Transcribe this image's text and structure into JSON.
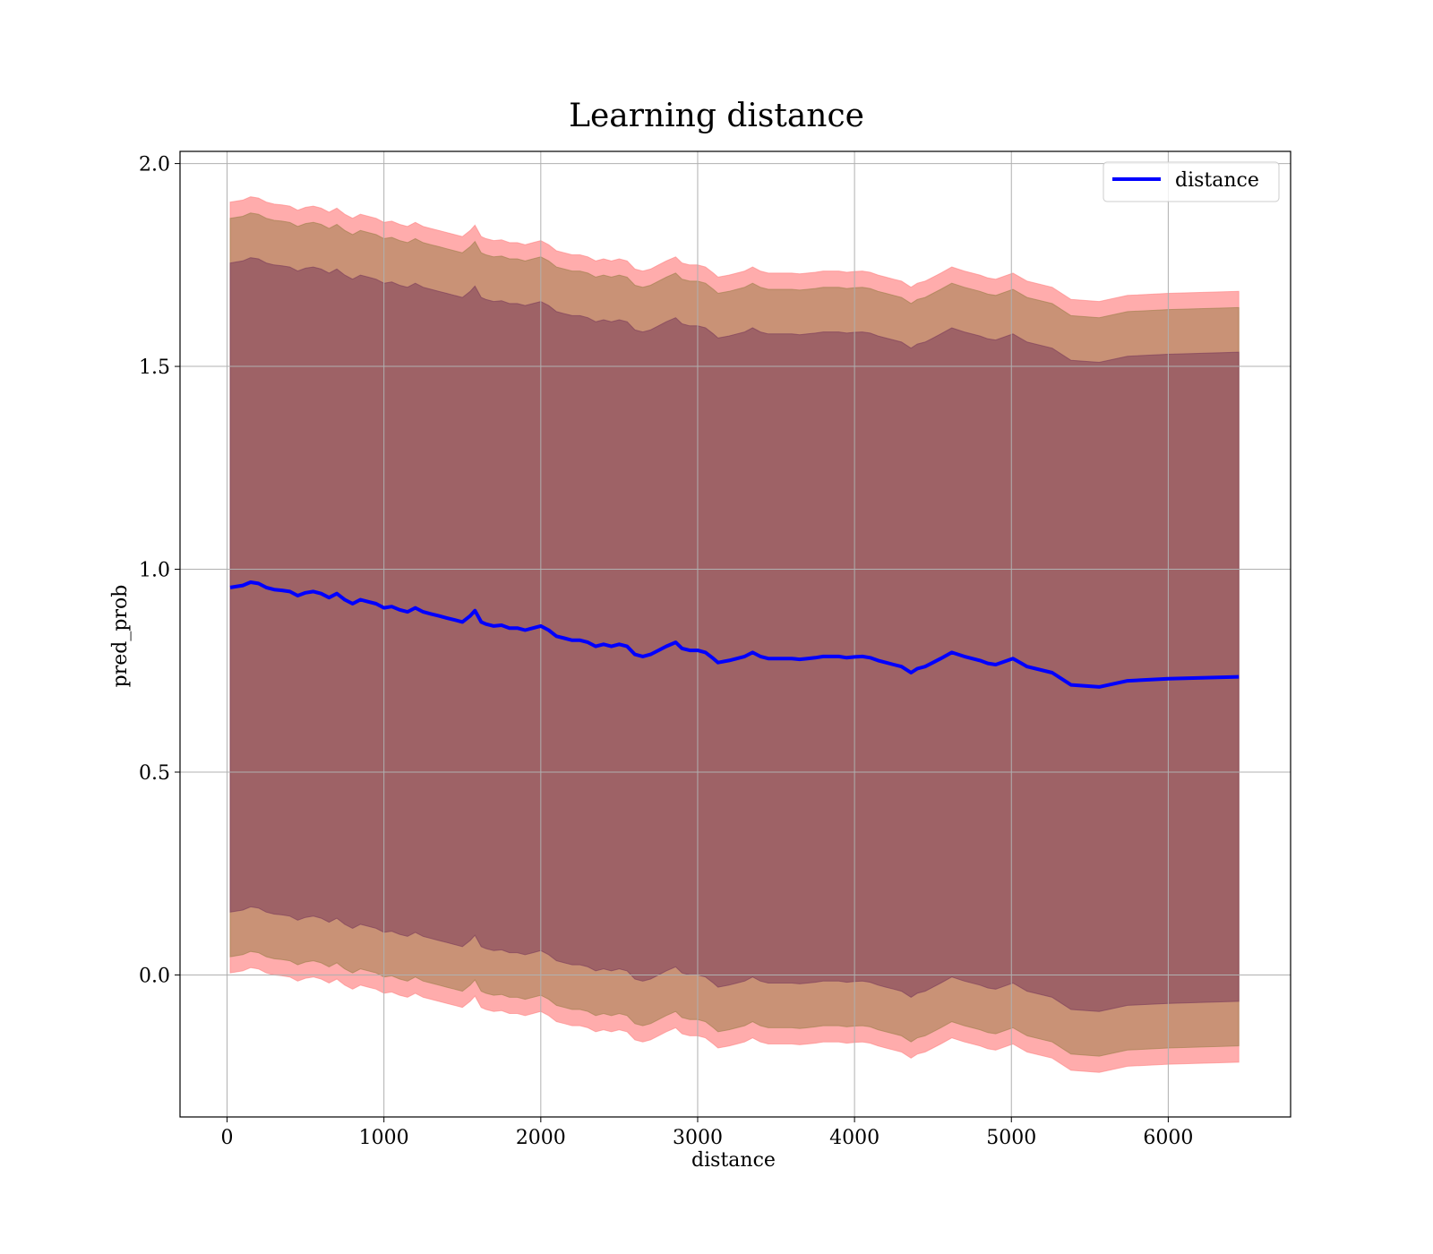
{
  "chart_data": {
    "type": "line",
    "title": "Learning distance",
    "xlabel": "distance",
    "ylabel": "pred_prob",
    "xlim": [
      -300,
      6780
    ],
    "ylim": [
      -0.35,
      2.03
    ],
    "xticks": [
      0,
      1000,
      2000,
      3000,
      4000,
      5000,
      6000
    ],
    "yticks": [
      0.0,
      0.5,
      1.0,
      1.5,
      2.0
    ],
    "xtick_labels": [
      "0",
      "1000",
      "2000",
      "3000",
      "4000",
      "5000",
      "6000"
    ],
    "ytick_labels": [
      "0.0",
      "0.5",
      "1.0",
      "1.5",
      "2.0"
    ],
    "grid": true,
    "legend_position": "top-right",
    "colors": {
      "line": "#0000ff",
      "band_outer": "#ff8080",
      "band_middle": "#9c7e4a",
      "band_inner": "#7a3a5a",
      "grid": "#b0b0b0"
    },
    "series": [
      {
        "name": "distance",
        "x": [
          20,
          100,
          150,
          200,
          250,
          300,
          350,
          400,
          450,
          500,
          550,
          600,
          650,
          700,
          750,
          800,
          850,
          900,
          950,
          1000,
          1050,
          1100,
          1150,
          1200,
          1250,
          1300,
          1350,
          1400,
          1450,
          1500,
          1550,
          1580,
          1620,
          1650,
          1700,
          1750,
          1800,
          1850,
          1900,
          1950,
          2000,
          2050,
          2100,
          2150,
          2200,
          2250,
          2300,
          2350,
          2400,
          2450,
          2500,
          2550,
          2600,
          2650,
          2700,
          2750,
          2800,
          2860,
          2900,
          2950,
          3000,
          3050,
          3100,
          3130,
          3200,
          3250,
          3300,
          3350,
          3400,
          3450,
          3500,
          3550,
          3600,
          3650,
          3700,
          3750,
          3800,
          3850,
          3900,
          3950,
          4000,
          4050,
          4100,
          4150,
          4200,
          4250,
          4300,
          4360,
          4400,
          4450,
          4500,
          4550,
          4620,
          4700,
          4800,
          4850,
          4900,
          5010,
          5100,
          5260,
          5380,
          5560,
          5740,
          6000,
          6450
        ],
        "y": [
          0.955,
          0.96,
          0.968,
          0.965,
          0.955,
          0.95,
          0.948,
          0.945,
          0.935,
          0.942,
          0.945,
          0.94,
          0.93,
          0.94,
          0.925,
          0.915,
          0.925,
          0.92,
          0.915,
          0.905,
          0.908,
          0.9,
          0.895,
          0.905,
          0.895,
          0.89,
          0.885,
          0.88,
          0.875,
          0.87,
          0.885,
          0.898,
          0.87,
          0.865,
          0.86,
          0.862,
          0.855,
          0.855,
          0.85,
          0.855,
          0.86,
          0.85,
          0.835,
          0.83,
          0.825,
          0.825,
          0.82,
          0.81,
          0.815,
          0.81,
          0.815,
          0.81,
          0.79,
          0.785,
          0.79,
          0.8,
          0.81,
          0.82,
          0.805,
          0.8,
          0.8,
          0.795,
          0.78,
          0.77,
          0.775,
          0.78,
          0.785,
          0.795,
          0.785,
          0.78,
          0.78,
          0.78,
          0.78,
          0.778,
          0.78,
          0.782,
          0.785,
          0.785,
          0.785,
          0.782,
          0.784,
          0.785,
          0.782,
          0.775,
          0.77,
          0.765,
          0.76,
          0.745,
          0.755,
          0.76,
          0.77,
          0.78,
          0.795,
          0.785,
          0.775,
          0.768,
          0.765,
          0.78,
          0.76,
          0.745,
          0.715,
          0.71,
          0.725,
          0.73,
          0.735
        ],
        "band_inner_halfwidth": 0.8,
        "band_middle_halfwidth": 0.91,
        "band_outer_halfwidth": 0.95
      }
    ]
  }
}
